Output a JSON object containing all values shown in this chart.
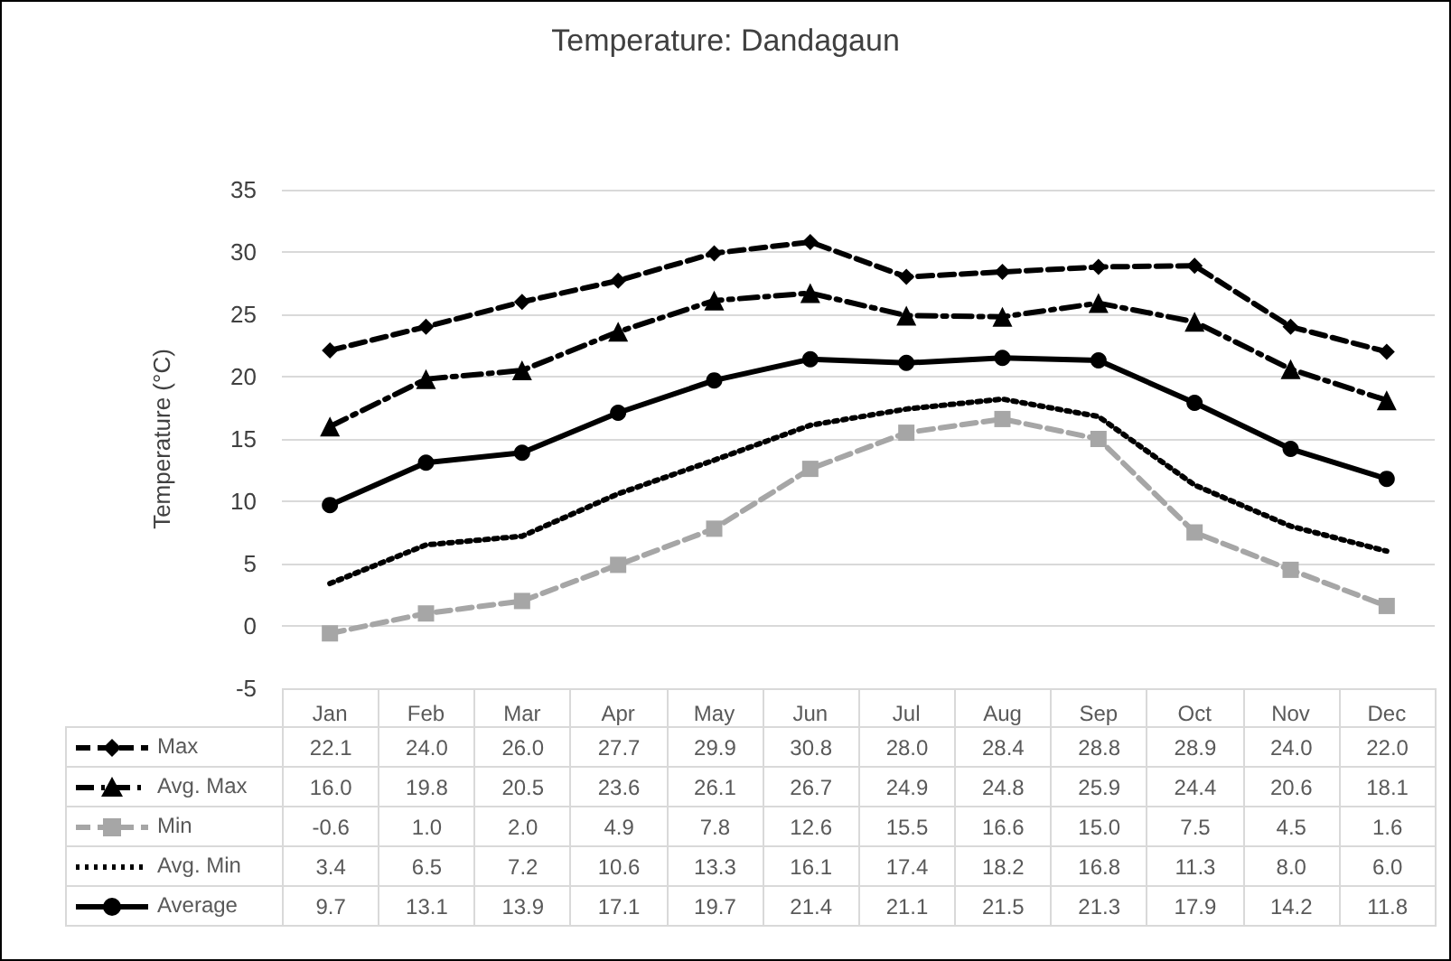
{
  "chart_data": {
    "type": "line",
    "title": "Temperature: Dandagaun",
    "ylabel": "Temperature (°C)",
    "categories": [
      "Jan",
      "Feb",
      "Mar",
      "Apr",
      "May",
      "Jun",
      "Jul",
      "Aug",
      "Sep",
      "Oct",
      "Nov",
      "Dec"
    ],
    "series": [
      {
        "name": "Max",
        "color": "#000000",
        "marker": "diamond",
        "line_style": "dashed",
        "values": [
          22.1,
          24.0,
          26.0,
          27.7,
          29.9,
          30.8,
          28.0,
          28.4,
          28.8,
          28.9,
          24.0,
          22.0
        ],
        "value_labels": [
          "22.1",
          "24.0",
          "26.0",
          "27.7",
          "29.9",
          "30.8",
          "28.0",
          "28.4",
          "28.8",
          "28.9",
          "24.0",
          "22.0"
        ]
      },
      {
        "name": "Avg. Max",
        "color": "#000000",
        "marker": "triangle",
        "line_style": "dashdot",
        "values": [
          16.0,
          19.8,
          20.5,
          23.6,
          26.1,
          26.7,
          24.9,
          24.8,
          25.9,
          24.4,
          20.6,
          18.1
        ],
        "value_labels": [
          "16.0",
          "19.8",
          "20.5",
          "23.6",
          "26.1",
          "26.7",
          "24.9",
          "24.8",
          "25.9",
          "24.4",
          "20.6",
          "18.1"
        ]
      },
      {
        "name": "Min",
        "color": "#a6a6a6",
        "marker": "square",
        "line_style": "dashed",
        "values": [
          -0.6,
          1.0,
          2.0,
          4.9,
          7.8,
          12.6,
          15.5,
          16.6,
          15.0,
          7.5,
          4.5,
          1.6
        ],
        "value_labels": [
          "-0.6",
          "1.0",
          "2.0",
          "4.9",
          "7.8",
          "12.6",
          "15.5",
          "16.6",
          "15.0",
          "7.5",
          "4.5",
          "1.6"
        ]
      },
      {
        "name": "Avg. Min",
        "color": "#000000",
        "marker": "none",
        "line_style": "dotted",
        "values": [
          3.4,
          6.5,
          7.2,
          10.6,
          13.3,
          16.1,
          17.4,
          18.2,
          16.8,
          11.3,
          8.0,
          6.0
        ],
        "value_labels": [
          "3.4",
          "6.5",
          "7.2",
          "10.6",
          "13.3",
          "16.1",
          "17.4",
          "18.2",
          "16.8",
          "11.3",
          "8.0",
          "6.0"
        ]
      },
      {
        "name": "Average",
        "color": "#000000",
        "marker": "circle",
        "line_style": "solid",
        "values": [
          9.7,
          13.1,
          13.9,
          17.1,
          19.7,
          21.4,
          21.1,
          21.5,
          21.3,
          17.9,
          14.2,
          11.8
        ],
        "value_labels": [
          "9.7",
          "13.1",
          "13.9",
          "17.1",
          "19.7",
          "21.4",
          "21.1",
          "21.5",
          "21.3",
          "17.9",
          "14.2",
          "11.8"
        ]
      }
    ],
    "ylim": [
      -5,
      35
    ],
    "yticks": [
      -5,
      0,
      5,
      10,
      15,
      20,
      25,
      30,
      35
    ],
    "grid": "y",
    "legend": "bottom"
  }
}
